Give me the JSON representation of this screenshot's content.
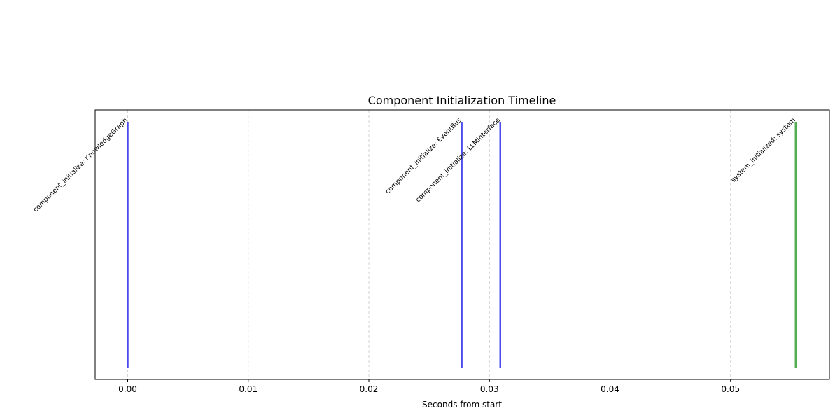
{
  "chart_data": {
    "type": "event-timeline",
    "title": "Component Initialization Timeline",
    "xlabel": "Seconds from start",
    "ylabel": "",
    "xlim": [
      -0.0027,
      0.0582
    ],
    "grid": {
      "x": true,
      "y": false,
      "style": "dashed"
    },
    "xticks": [
      {
        "value": 0.0,
        "label": "0.00"
      },
      {
        "value": 0.01,
        "label": "0.01"
      },
      {
        "value": 0.02,
        "label": "0.02"
      },
      {
        "value": 0.03,
        "label": "0.03"
      },
      {
        "value": 0.04,
        "label": "0.04"
      },
      {
        "value": 0.05,
        "label": "0.05"
      }
    ],
    "events": [
      {
        "x": 0.0,
        "label": "component_initialize: KnowledgeGraph",
        "color": "#4b4bf0"
      },
      {
        "x": 0.0277,
        "label": "component_initialize: EventBus",
        "color": "#4b4bf0"
      },
      {
        "x": 0.0309,
        "label": "component_initialize: LLMInterface",
        "color": "#4b4bf0"
      },
      {
        "x": 0.0554,
        "label": "system_initialized: system",
        "color": "#52ad52"
      }
    ]
  }
}
